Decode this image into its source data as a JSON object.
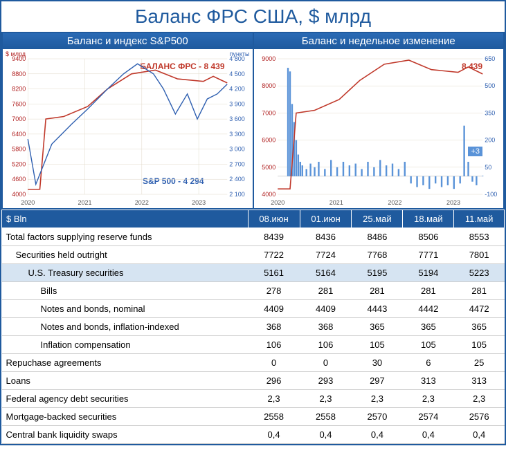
{
  "title": "Баланс ФРС США, $ млрд",
  "chart1": {
    "title": "Баланс и индекс S&P500",
    "type": "line",
    "x_years": [
      "2020",
      "2021",
      "2022",
      "2023"
    ],
    "left_axis": {
      "label": "$ млрд",
      "range": [
        4000,
        9400
      ],
      "step": 600,
      "color": "#b02020"
    },
    "right_axis": {
      "label": "пункты",
      "range": [
        2100,
        4800
      ],
      "step": 300,
      "color": "#2e5fb0"
    },
    "series_balance": {
      "label": "БАЛАНС ФРС - 8 439",
      "color": "#c0392b",
      "value": 8439,
      "points": [
        [
          0,
          4200
        ],
        [
          6,
          4200
        ],
        [
          9,
          7000
        ],
        [
          18,
          7100
        ],
        [
          30,
          7500
        ],
        [
          40,
          8200
        ],
        [
          52,
          8800
        ],
        [
          64,
          8950
        ],
        [
          75,
          8600
        ],
        [
          88,
          8500
        ],
        [
          93,
          8700
        ],
        [
          97,
          8550
        ],
        [
          100,
          8439
        ]
      ]
    },
    "series_sp500": {
      "label": "S&P 500 - 4 294",
      "color": "#2e5fb0",
      "value": 4294,
      "points": [
        [
          0,
          3200
        ],
        [
          4,
          2300
        ],
        [
          12,
          3100
        ],
        [
          22,
          3500
        ],
        [
          30,
          3800
        ],
        [
          40,
          4200
        ],
        [
          48,
          4500
        ],
        [
          55,
          4700
        ],
        [
          63,
          4500
        ],
        [
          68,
          4200
        ],
        [
          74,
          3700
        ],
        [
          80,
          4100
        ],
        [
          85,
          3600
        ],
        [
          90,
          4000
        ],
        [
          95,
          4100
        ],
        [
          100,
          4294
        ]
      ]
    }
  },
  "chart2": {
    "title": "Баланс и недельное изменение",
    "type": "line+bar",
    "x_years": [
      "2020",
      "2021",
      "2022",
      "2023"
    ],
    "left_axis": {
      "range": [
        4000,
        9000
      ],
      "step": 1000,
      "color": "#b02020"
    },
    "right_axis": {
      "range": [
        -100,
        650
      ],
      "step": 150,
      "color": "#2e5fb0"
    },
    "balance_label": "8 439",
    "change_label": "+3",
    "series_balance": {
      "color": "#c0392b",
      "points": [
        [
          0,
          4200
        ],
        [
          6,
          4200
        ],
        [
          9,
          7000
        ],
        [
          18,
          7100
        ],
        [
          30,
          7500
        ],
        [
          40,
          8200
        ],
        [
          52,
          8800
        ],
        [
          64,
          8950
        ],
        [
          75,
          8600
        ],
        [
          88,
          8500
        ],
        [
          93,
          8700
        ],
        [
          97,
          8550
        ],
        [
          100,
          8439
        ]
      ]
    },
    "weekly_change": {
      "color": "#5a93d8",
      "baseline": 0,
      "bars": [
        [
          5,
          600
        ],
        [
          6,
          580
        ],
        [
          7,
          400
        ],
        [
          8,
          300
        ],
        [
          9,
          200
        ],
        [
          10,
          120
        ],
        [
          11,
          80
        ],
        [
          12,
          60
        ],
        [
          14,
          40
        ],
        [
          16,
          70
        ],
        [
          18,
          50
        ],
        [
          20,
          80
        ],
        [
          23,
          40
        ],
        [
          26,
          90
        ],
        [
          29,
          50
        ],
        [
          32,
          80
        ],
        [
          35,
          60
        ],
        [
          38,
          70
        ],
        [
          41,
          40
        ],
        [
          44,
          80
        ],
        [
          47,
          50
        ],
        [
          50,
          90
        ],
        [
          53,
          60
        ],
        [
          56,
          70
        ],
        [
          59,
          40
        ],
        [
          62,
          80
        ],
        [
          65,
          -40
        ],
        [
          68,
          -60
        ],
        [
          71,
          -50
        ],
        [
          74,
          -70
        ],
        [
          77,
          -40
        ],
        [
          80,
          -60
        ],
        [
          83,
          -50
        ],
        [
          86,
          -70
        ],
        [
          89,
          -40
        ],
        [
          91,
          280
        ],
        [
          93,
          80
        ],
        [
          95,
          -30
        ],
        [
          97,
          -50
        ],
        [
          100,
          3
        ]
      ]
    }
  },
  "table": {
    "header_label": "$ Bln",
    "dates": [
      "08.июн",
      "01.июн",
      "25.май",
      "18.май",
      "11.май"
    ],
    "rows": [
      {
        "label": "Total factors supplying reserve funds",
        "indent": 0,
        "hl": false,
        "vals": [
          "8439",
          "8436",
          "8486",
          "8506",
          "8553"
        ]
      },
      {
        "label": "Securities held outright",
        "indent": 1,
        "hl": false,
        "vals": [
          "7722",
          "7724",
          "7768",
          "7771",
          "7801"
        ]
      },
      {
        "label": "U.S. Treasury securities",
        "indent": 2,
        "hl": true,
        "vals": [
          "5161",
          "5164",
          "5195",
          "5194",
          "5223"
        ]
      },
      {
        "label": "Bills",
        "indent": 3,
        "hl": false,
        "vals": [
          "278",
          "281",
          "281",
          "281",
          "281"
        ]
      },
      {
        "label": "Notes and bonds, nominal",
        "indent": 3,
        "hl": false,
        "vals": [
          "4409",
          "4409",
          "4443",
          "4442",
          "4472"
        ]
      },
      {
        "label": "Notes and bonds, inflation-indexed",
        "indent": 3,
        "hl": false,
        "vals": [
          "368",
          "368",
          "365",
          "365",
          "365"
        ]
      },
      {
        "label": "Inflation compensation",
        "indent": 3,
        "hl": false,
        "vals": [
          "106",
          "106",
          "105",
          "105",
          "105"
        ]
      },
      {
        "label": "Repuchase agreements",
        "indent": 0,
        "hl": false,
        "vals": [
          "0",
          "0",
          "30",
          "6",
          "25"
        ]
      },
      {
        "label": "Loans",
        "indent": 0,
        "hl": false,
        "vals": [
          "296",
          "293",
          "297",
          "313",
          "313"
        ]
      },
      {
        "label": "Federal agency debt securities",
        "indent": 0,
        "hl": false,
        "vals": [
          "2,3",
          "2,3",
          "2,3",
          "2,3",
          "2,3"
        ]
      },
      {
        "label": "Mortgage-backed securities",
        "indent": 0,
        "hl": false,
        "vals": [
          "2558",
          "2558",
          "2570",
          "2574",
          "2576"
        ]
      },
      {
        "label": "Central bank liquidity swaps",
        "indent": 0,
        "hl": false,
        "vals": [
          "0,4",
          "0,4",
          "0,4",
          "0,4",
          "0,4"
        ]
      }
    ]
  },
  "colors": {
    "frame": "#1f5a9e",
    "grid": "#e0d8c8",
    "bg": "#ffffff"
  }
}
